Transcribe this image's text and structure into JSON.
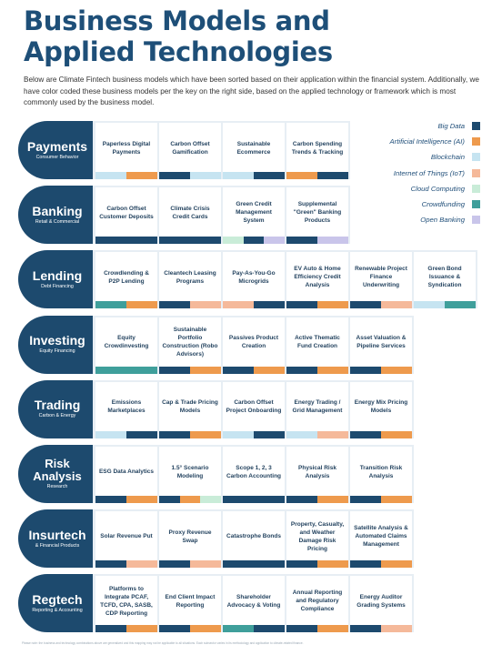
{
  "title": {
    "line1": "Business Models and",
    "line2": "Applied Technologies"
  },
  "intro": "Below are Climate Fintech business models which have been sorted based on their application within the financial system. Additionally, we have color coded these business models per the key on the right side, based on the applied technology or framework which is most commonly used by the business model.",
  "colors": {
    "big_data": "#1d4a6e",
    "ai": "#ee9a4d",
    "blockchain": "#c6e4f1",
    "iot": "#f5b99a",
    "cloud": "#c9ecd8",
    "crowdfunding": "#3f9f9b",
    "open_banking": "#c9c5ea"
  },
  "legend": [
    {
      "label": "Big Data",
      "color": "#1d4a6e"
    },
    {
      "label": "Artificial Intelligence (AI)",
      "color": "#ee9a4d"
    },
    {
      "label": "Blockchain",
      "color": "#c6e4f1"
    },
    {
      "label": "Internet of Things (IoT)",
      "color": "#f5b99a"
    },
    {
      "label": "Cloud Computing",
      "color": "#c9ecd8"
    },
    {
      "label": "Crowdfunding",
      "color": "#3f9f9b"
    },
    {
      "label": "Open Banking",
      "color": "#c9c5ea"
    }
  ],
  "rows": [
    {
      "heading": "Payments",
      "sub": "Consumer Behavior",
      "two_line": false,
      "cells": [
        {
          "text": "Paperless Digital Payments",
          "techs": [
            "blockchain",
            "ai"
          ]
        },
        {
          "text": "Carbon Offset Gamification",
          "techs": [
            "big_data",
            "blockchain"
          ]
        },
        {
          "text": "Sustainable Ecommerce",
          "techs": [
            "blockchain",
            "big_data"
          ]
        },
        {
          "text": "Carbon Spending Trends & Tracking",
          "techs": [
            "ai",
            "big_data"
          ]
        }
      ]
    },
    {
      "heading": "Banking",
      "sub": "Retail & Commercial",
      "two_line": false,
      "cells": [
        {
          "text": "Carbon Offset Customer Deposits",
          "techs": [
            "big_data"
          ]
        },
        {
          "text": "Climate Crisis Credit Cards",
          "techs": [
            "big_data"
          ]
        },
        {
          "text": "Green Credit Management System",
          "techs": [
            "cloud",
            "big_data",
            "open_banking"
          ]
        },
        {
          "text": "Supplemental \"Green\" Banking Products",
          "techs": [
            "big_data",
            "open_banking"
          ]
        }
      ]
    },
    {
      "heading": "Lending",
      "sub": "Debt Financing",
      "two_line": false,
      "cells": [
        {
          "text": "Crowdlending & P2P Lending",
          "techs": [
            "crowdfunding",
            "ai"
          ]
        },
        {
          "text": "Cleantech Leasing Programs",
          "techs": [
            "big_data",
            "iot"
          ]
        },
        {
          "text": "Pay-As-You-Go Microgrids",
          "techs": [
            "iot",
            "big_data"
          ]
        },
        {
          "text": "EV Auto & Home Efficiency Credit Analysis",
          "techs": [
            "big_data",
            "ai"
          ]
        },
        {
          "text": "Renewable Project Finance Underwriting",
          "techs": [
            "big_data",
            "iot"
          ]
        },
        {
          "text": "Green Bond Issuance & Syndication",
          "techs": [
            "blockchain",
            "crowdfunding"
          ]
        }
      ]
    },
    {
      "heading": "Investing",
      "sub": "Equity Financing",
      "two_line": false,
      "cells": [
        {
          "text": "Equity Crowdinvesting",
          "techs": [
            "crowdfunding"
          ]
        },
        {
          "text": "Sustainable Portfolio Construction (Robo Advisors)",
          "techs": [
            "big_data",
            "ai"
          ]
        },
        {
          "text": "Passives Product Creation",
          "techs": [
            "big_data",
            "ai"
          ]
        },
        {
          "text": "Active Thematic Fund Creation",
          "techs": [
            "big_data",
            "ai"
          ]
        },
        {
          "text": "Asset Valuation & Pipeline Services",
          "techs": [
            "big_data",
            "ai"
          ]
        }
      ]
    },
    {
      "heading": "Trading",
      "sub": "Carbon & Energy",
      "two_line": false,
      "cells": [
        {
          "text": "Emissions Marketplaces",
          "techs": [
            "blockchain",
            "big_data"
          ]
        },
        {
          "text": "Cap & Trade Pricing Models",
          "techs": [
            "big_data",
            "ai"
          ]
        },
        {
          "text": "Carbon Offset Project Onboarding",
          "techs": [
            "blockchain",
            "big_data"
          ]
        },
        {
          "text": "Energy Trading / Grid Management",
          "techs": [
            "blockchain",
            "iot"
          ]
        },
        {
          "text": "Energy Mix Pricing Models",
          "techs": [
            "big_data",
            "ai"
          ]
        }
      ]
    },
    {
      "heading": "Risk Analysis",
      "sub": "Research",
      "two_line": true,
      "cells": [
        {
          "text": "ESG Data Analytics",
          "techs": [
            "big_data",
            "ai"
          ]
        },
        {
          "text": "1.5° Scenario Modeling",
          "techs": [
            "big_data",
            "ai",
            "cloud"
          ]
        },
        {
          "text": "Scope 1, 2, 3 Carbon Accounting",
          "techs": [
            "big_data"
          ]
        },
        {
          "text": "Physical Risk Analysis",
          "techs": [
            "big_data",
            "ai"
          ]
        },
        {
          "text": "Transition Risk Analysis",
          "techs": [
            "big_data",
            "ai"
          ]
        }
      ]
    },
    {
      "heading": "Insurtech",
      "sub": "& Financial Products",
      "two_line": false,
      "cells": [
        {
          "text": "Solar Revenue Put",
          "techs": [
            "big_data",
            "iot"
          ]
        },
        {
          "text": "Proxy Revenue Swap",
          "techs": [
            "big_data",
            "iot"
          ]
        },
        {
          "text": "Catastrophe Bonds",
          "techs": [
            "big_data"
          ]
        },
        {
          "text": "Property, Casualty, and Weather Damage Risk Pricing",
          "techs": [
            "big_data",
            "ai"
          ]
        },
        {
          "text": "Satellite Analysis & Automated Claims Management",
          "techs": [
            "big_data",
            "ai"
          ]
        }
      ]
    },
    {
      "heading": "Regtech",
      "sub": "Reporting & Accounting",
      "two_line": false,
      "cells": [
        {
          "text": "Platforms to Integrate PCAF, TCFD, CPA, SASB, CDP Reporting",
          "techs": [
            "big_data",
            "ai"
          ]
        },
        {
          "text": "End Client Impact Reporting",
          "techs": [
            "big_data",
            "ai"
          ]
        },
        {
          "text": "Shareholder Advocacy & Voting",
          "techs": [
            "crowdfunding",
            "big_data"
          ]
        },
        {
          "text": "Annual Reporting and Regulatory Compliance",
          "techs": [
            "big_data",
            "ai"
          ]
        },
        {
          "text": "Energy Auditor Grading Systems",
          "techs": [
            "big_data",
            "iot"
          ]
        }
      ]
    }
  ],
  "footnote": "Please note: the business and technology combinations above are generalized and this mapping may not be applicable to all situations. Each subsector varies in its methodology and application to climate-related finance."
}
